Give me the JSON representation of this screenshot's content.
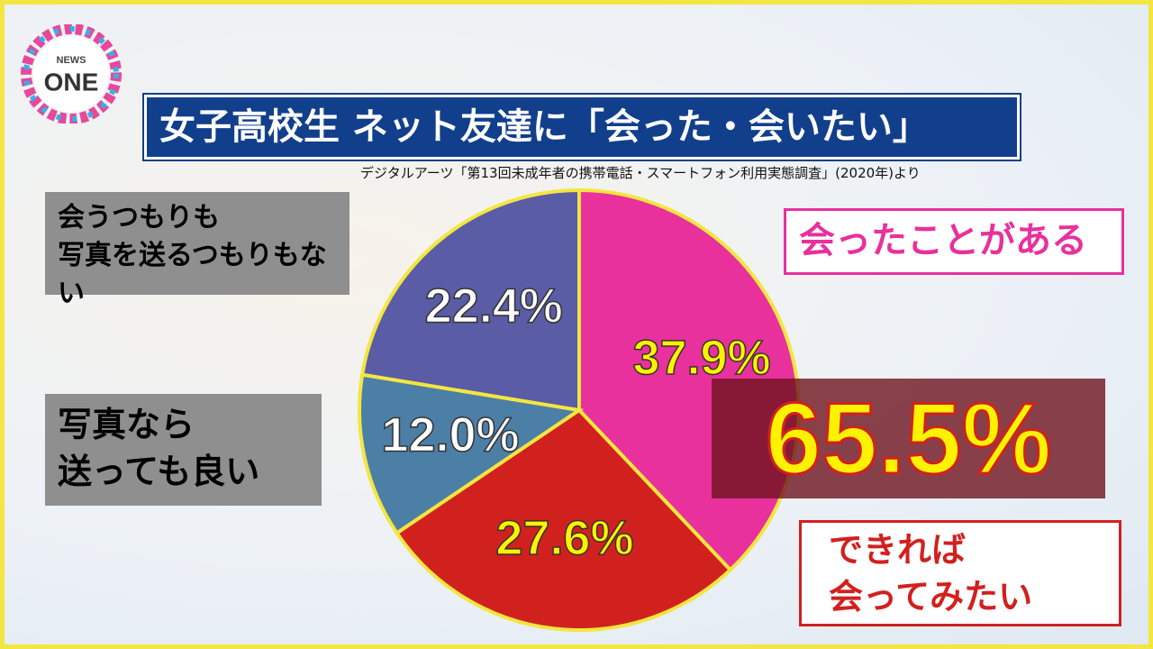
{
  "chart_data": {
    "type": "pie",
    "logo": {
      "top": "NEWS",
      "main": "ONE"
    },
    "title": "女子高校生 ネット友達に「会った・会いたい」",
    "subtitle": "デジタルアーツ「第13回未成年者の携帯電話・スマートフォン利用実態調査」(2020年)より",
    "categories": [
      "会ったことがある",
      "できれば\n会ってみたい",
      "写真なら\n送っても良い",
      "会うつもりも\n写真を送るつもりもない"
    ],
    "values": [
      37.9,
      27.6,
      12.0,
      22.4
    ],
    "value_labels": [
      "37.9%",
      "27.6%",
      "12.0%",
      "22.4%"
    ],
    "colors": [
      "#e8319c",
      "#d1211f",
      "#4c7fa6",
      "#5a5ca6"
    ],
    "label_colors": [
      "#fff200",
      "#fff200",
      "#ffffff",
      "#ffffff"
    ],
    "annotation": "65.5%"
  }
}
